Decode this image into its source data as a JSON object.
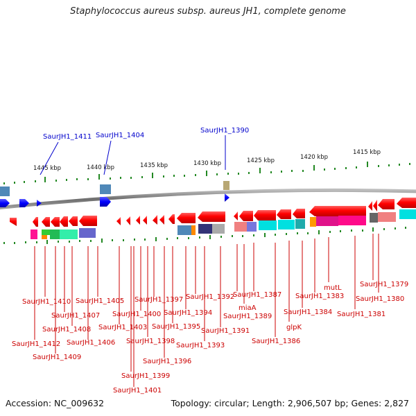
{
  "header": {
    "title": "Staphylococcus aureus subsp. aureus JH1, complete genome"
  },
  "footer": {
    "accession": "Accession: NC_009632",
    "summary": "Topology: circular; Length: 2,906,507 bp; Genes: 2,827"
  },
  "scale": {
    "ticks": [
      "1445 kbp",
      "1440 kbp",
      "1435 kbp",
      "1430 kbp",
      "1425 kbp",
      "1420 kbp",
      "1415 kbp"
    ]
  },
  "genes_top": [
    {
      "label": "SaurJH1_1411",
      "color": "#0000cc"
    },
    {
      "label": "SaurJH1_1404",
      "color": "#0000cc"
    },
    {
      "label": "SaurJH1_1390",
      "color": "#0000cc"
    }
  ],
  "genes_bottom": [
    {
      "label": "SaurJH1_1410"
    },
    {
      "label": "SaurJH1_1412"
    },
    {
      "label": "SaurJH1_1409"
    },
    {
      "label": "SaurJH1_1407"
    },
    {
      "label": "SaurJH1_1408"
    },
    {
      "label": "SaurJH1_1406"
    },
    {
      "label": "SaurJH1_1405"
    },
    {
      "label": "SaurJH1_1403"
    },
    {
      "label": "SaurJH1_1401"
    },
    {
      "label": "SaurJH1_1399"
    },
    {
      "label": "SaurJH1_1400"
    },
    {
      "label": "SaurJH1_1398"
    },
    {
      "label": "SaurJH1_1397"
    },
    {
      "label": "SaurJH1_1396"
    },
    {
      "label": "SaurJH1_1395"
    },
    {
      "label": "SaurJH1_1394"
    },
    {
      "label": "SaurJH1_1393"
    },
    {
      "label": "SaurJH1_1392"
    },
    {
      "label": "SaurJH1_1391"
    },
    {
      "label": "SaurJH1_1387"
    },
    {
      "label": "miaA"
    },
    {
      "label": "SaurJH1_1389"
    },
    {
      "label": "SaurJH1_1386"
    },
    {
      "label": "glpK"
    },
    {
      "label": "SaurJH1_1384"
    },
    {
      "label": "mutL"
    },
    {
      "label": "SaurJH1_1383"
    },
    {
      "label": "SaurJH1_1381"
    },
    {
      "label": "SaurJH1_1380"
    },
    {
      "label": "SaurJH1_1379"
    }
  ],
  "colors": {
    "backbone": "#8a8a8a",
    "reverse_gene": "#ff0000",
    "forward_gene": "#0000ff",
    "tick": "#228822"
  }
}
